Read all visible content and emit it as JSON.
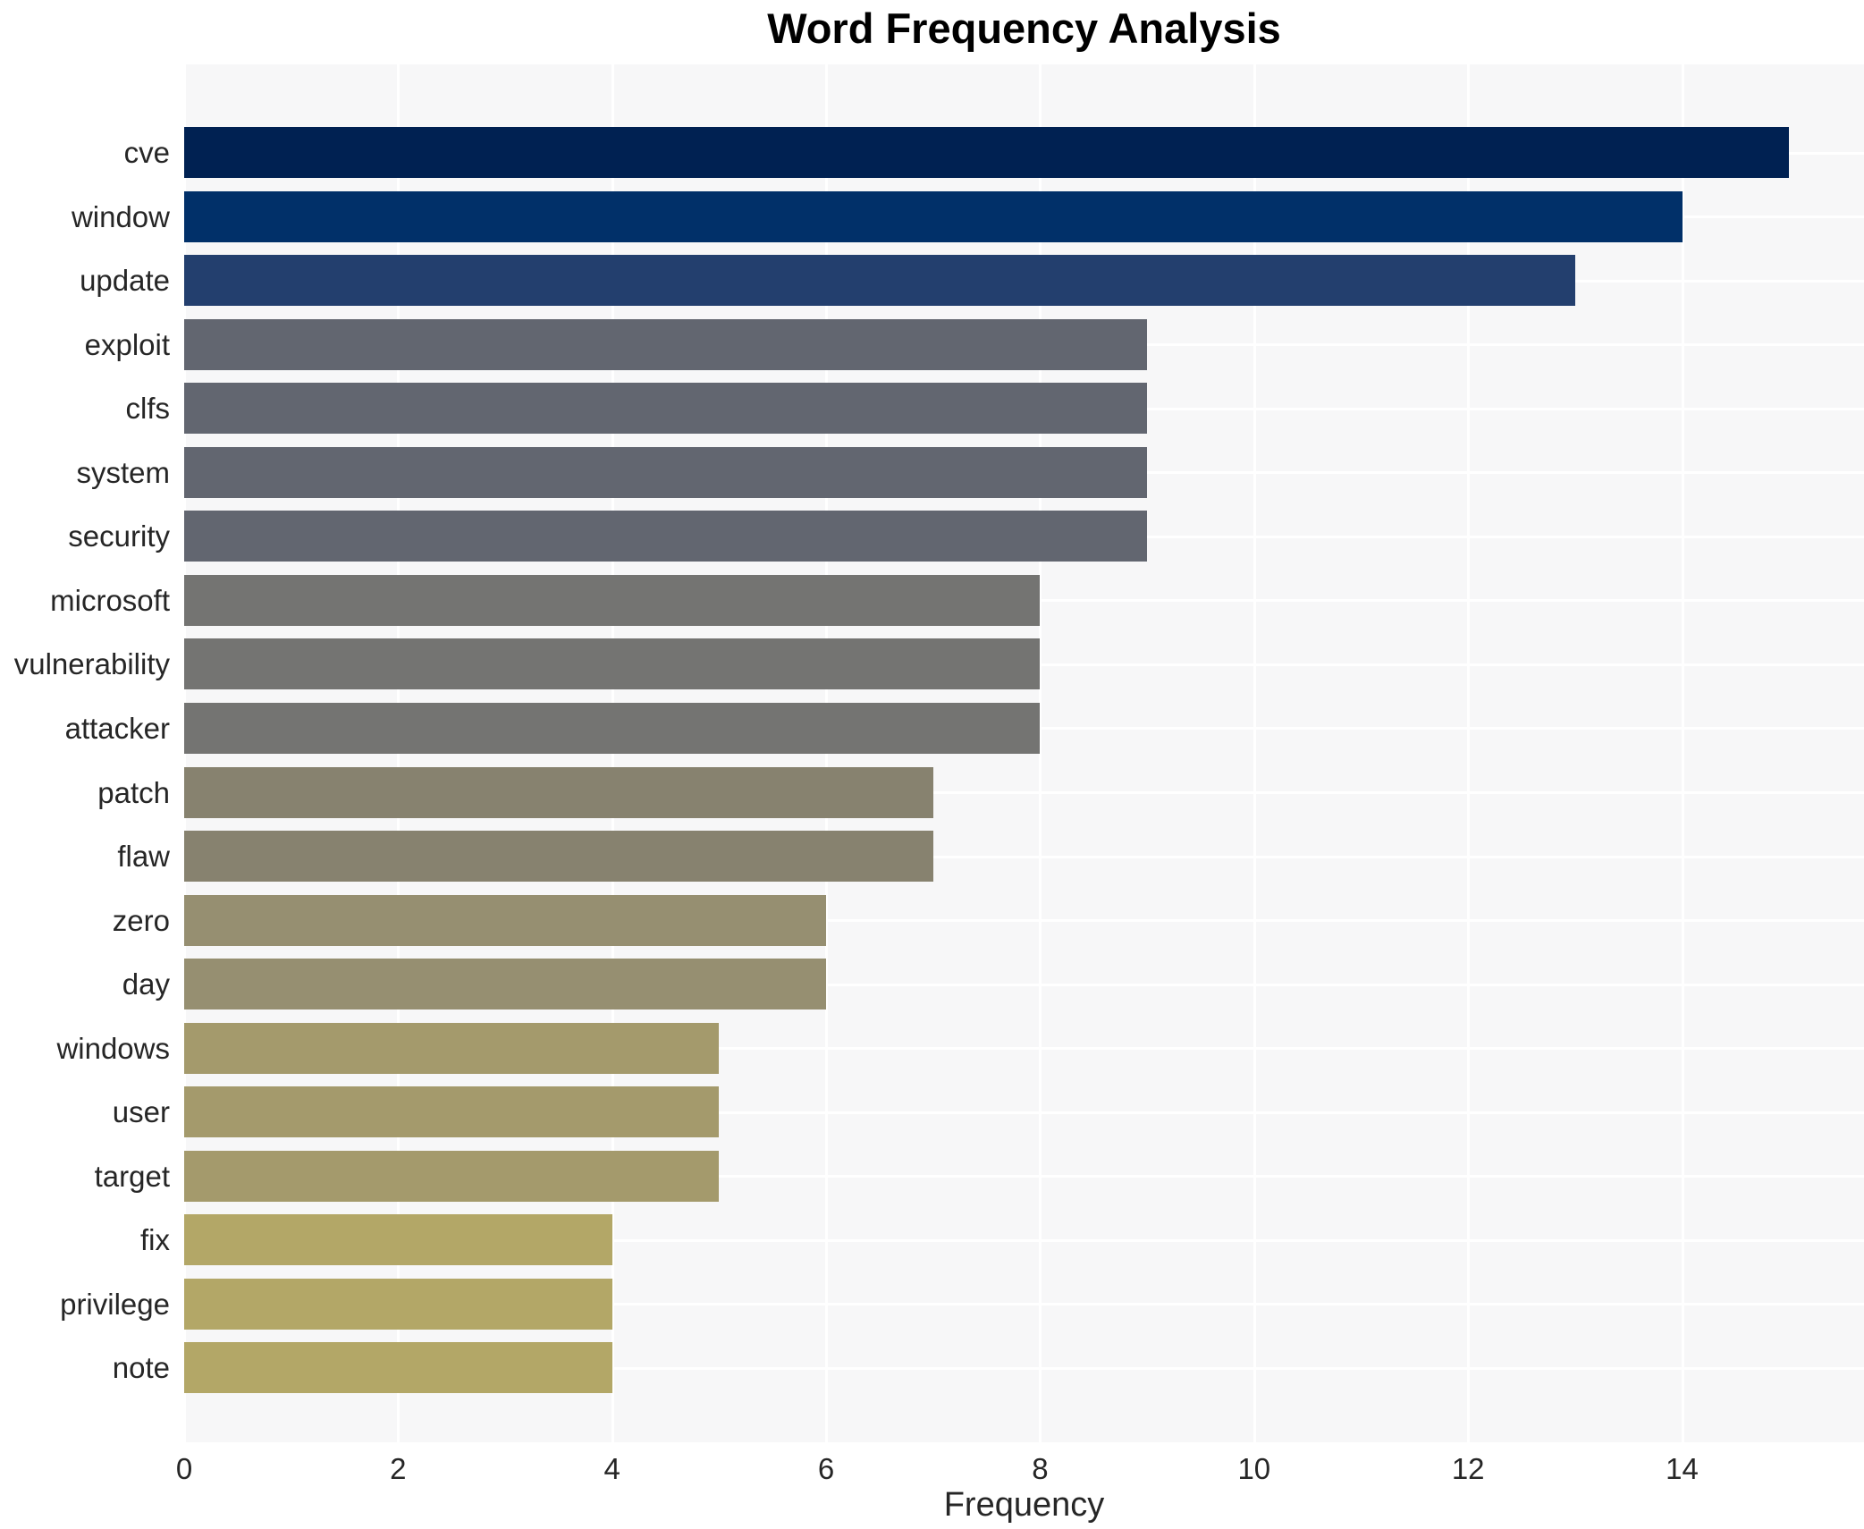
{
  "title": "Word Frequency Analysis",
  "chart_data": {
    "type": "bar",
    "orientation": "horizontal",
    "title": "Word Frequency Analysis",
    "xlabel": "Frequency",
    "ylabel": "",
    "categories": [
      "cve",
      "window",
      "update",
      "exploit",
      "clfs",
      "system",
      "security",
      "microsoft",
      "vulnerability",
      "attacker",
      "patch",
      "flaw",
      "zero",
      "day",
      "windows",
      "user",
      "target",
      "fix",
      "privilege",
      "note"
    ],
    "values": [
      15,
      14,
      13,
      9,
      9,
      9,
      9,
      8,
      8,
      8,
      7,
      7,
      6,
      6,
      5,
      5,
      5,
      4,
      4,
      4
    ],
    "bar_colors": [
      "#002152",
      "#013069",
      "#233f6e",
      "#626670",
      "#626670",
      "#626670",
      "#626670",
      "#747472",
      "#747472",
      "#747472",
      "#87826f",
      "#87826f",
      "#968f71",
      "#968f71",
      "#a49a6c",
      "#a49a6c",
      "#a49a6c",
      "#b3a767",
      "#b3a767",
      "#b3a767"
    ],
    "x_ticks": [
      0,
      2,
      4,
      6,
      8,
      10,
      12,
      14
    ],
    "xlim": [
      0,
      15.7
    ],
    "grid": "on",
    "gridline_color": "#ffffff",
    "legend": "none"
  },
  "style": {
    "figure_background": "#ffffff",
    "plot_background": "#f7f7f8",
    "grid_color": "#ffffff",
    "tick_text_color": "#262626",
    "title_color": "#000000"
  }
}
